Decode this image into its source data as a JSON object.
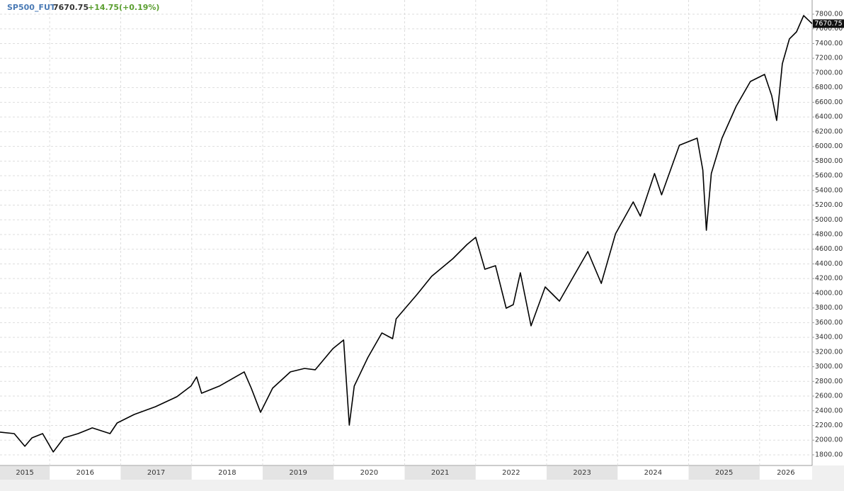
{
  "chart_data": {
    "type": "line",
    "last_price": 7670.75,
    "change": "+14.75(+0.19%)",
    "x": [
      2015.3,
      2015.5,
      2015.65,
      2015.75,
      2015.9,
      2016.05,
      2016.2,
      2016.4,
      2016.6,
      2016.85,
      2016.95,
      2017.19,
      2017.49,
      2017.79,
      2017.99,
      2018.07,
      2018.14,
      2018.39,
      2018.74,
      2018.84,
      2018.97,
      2019.14,
      2019.39,
      2019.59,
      2019.74,
      2019.99,
      2020.14,
      2020.17,
      2020.22,
      2020.29,
      2020.48,
      2020.68,
      2020.83,
      2020.88,
      2021.18,
      2021.38,
      2021.68,
      2021.88,
      2022.0,
      2022.13,
      2022.28,
      2022.43,
      2022.53,
      2022.63,
      2022.78,
      2022.98,
      2023.18,
      2023.38,
      2023.58,
      2023.77,
      2023.97,
      2024.22,
      2024.32,
      2024.52,
      2024.62,
      2024.87,
      2025.12,
      2025.2,
      2025.25,
      2025.32,
      2025.47,
      2025.67,
      2025.87,
      2026.07,
      2026.17,
      2026.24,
      2026.32,
      2026.42,
      2026.52,
      2026.62,
      2026.74
    ],
    "series": [
      {
        "name": "SP500_FUT",
        "color": "#000000",
        "values": [
          2109,
          2089,
          1916,
          2031,
          2089,
          1839,
          2031,
          2089,
          2167,
          2089,
          2234,
          2350,
          2456,
          2591,
          2736,
          2861,
          2639,
          2736,
          2929,
          2707,
          2379,
          2707,
          2929,
          2977,
          2958,
          3247,
          3363,
          2929,
          2205,
          2736,
          3122,
          3460,
          3382,
          3652,
          3990,
          4231,
          4472,
          4665,
          4761,
          4327,
          4375,
          3797,
          3845,
          4279,
          3556,
          4086,
          3893,
          4231,
          4568,
          4134,
          4810,
          5244,
          5051,
          5630,
          5340,
          6015,
          6112,
          5678,
          4858,
          5630,
          6112,
          6546,
          6884,
          6980,
          6691,
          6353,
          7125,
          7463,
          7559,
          7781,
          7670.75
        ]
      }
    ],
    "xlim": [
      2015.3,
      2026.74
    ],
    "xticks": [
      2015,
      2016,
      2017,
      2018,
      2019,
      2020,
      2021,
      2022,
      2023,
      2024,
      2025,
      2026
    ],
    "ylim": [
      1655,
      7993
    ],
    "yticks": [
      {
        "value": 1800,
        "label": "1800.00"
      },
      {
        "value": 2000,
        "label": "2000.00"
      },
      {
        "value": 2200,
        "label": "2200.00"
      },
      {
        "value": 2400,
        "label": "2400.00"
      },
      {
        "value": 2600,
        "label": "2600.00"
      },
      {
        "value": 2800,
        "label": "2800.00"
      },
      {
        "value": 3000,
        "label": "3000.00"
      },
      {
        "value": 3200,
        "label": "3200.00"
      },
      {
        "value": 3400,
        "label": "3400.00"
      },
      {
        "value": 3600,
        "label": "3600.00"
      },
      {
        "value": 3800,
        "label": "3800.00"
      },
      {
        "value": 4000,
        "label": "4000.00"
      },
      {
        "value": 4200,
        "label": "4200.00"
      },
      {
        "value": 4400,
        "label": "4400.00"
      },
      {
        "value": 4600,
        "label": "4600.00"
      },
      {
        "value": 4800,
        "label": "4800.00"
      },
      {
        "value": 5000,
        "label": "5000.00"
      },
      {
        "value": 5200,
        "label": "5200.00"
      },
      {
        "value": 5400,
        "label": "5400.00"
      },
      {
        "value": 5600,
        "label": "5600.00"
      },
      {
        "value": 5800,
        "label": "5800.00"
      },
      {
        "value": 6000,
        "label": "6000.00"
      },
      {
        "value": 6200,
        "label": "6200.00"
      },
      {
        "value": 6400,
        "label": "6400.00"
      },
      {
        "value": 6600,
        "label": "6600.00"
      },
      {
        "value": 6800,
        "label": "6800.00"
      },
      {
        "value": 7000,
        "label": "7000.00"
      },
      {
        "value": 7200,
        "label": "7200.00"
      },
      {
        "value": 7400,
        "label": "7400.00"
      },
      {
        "value": 7600,
        "label": "7600.00"
      },
      {
        "value": 7800,
        "label": "7800.00"
      }
    ],
    "grid": true
  }
}
